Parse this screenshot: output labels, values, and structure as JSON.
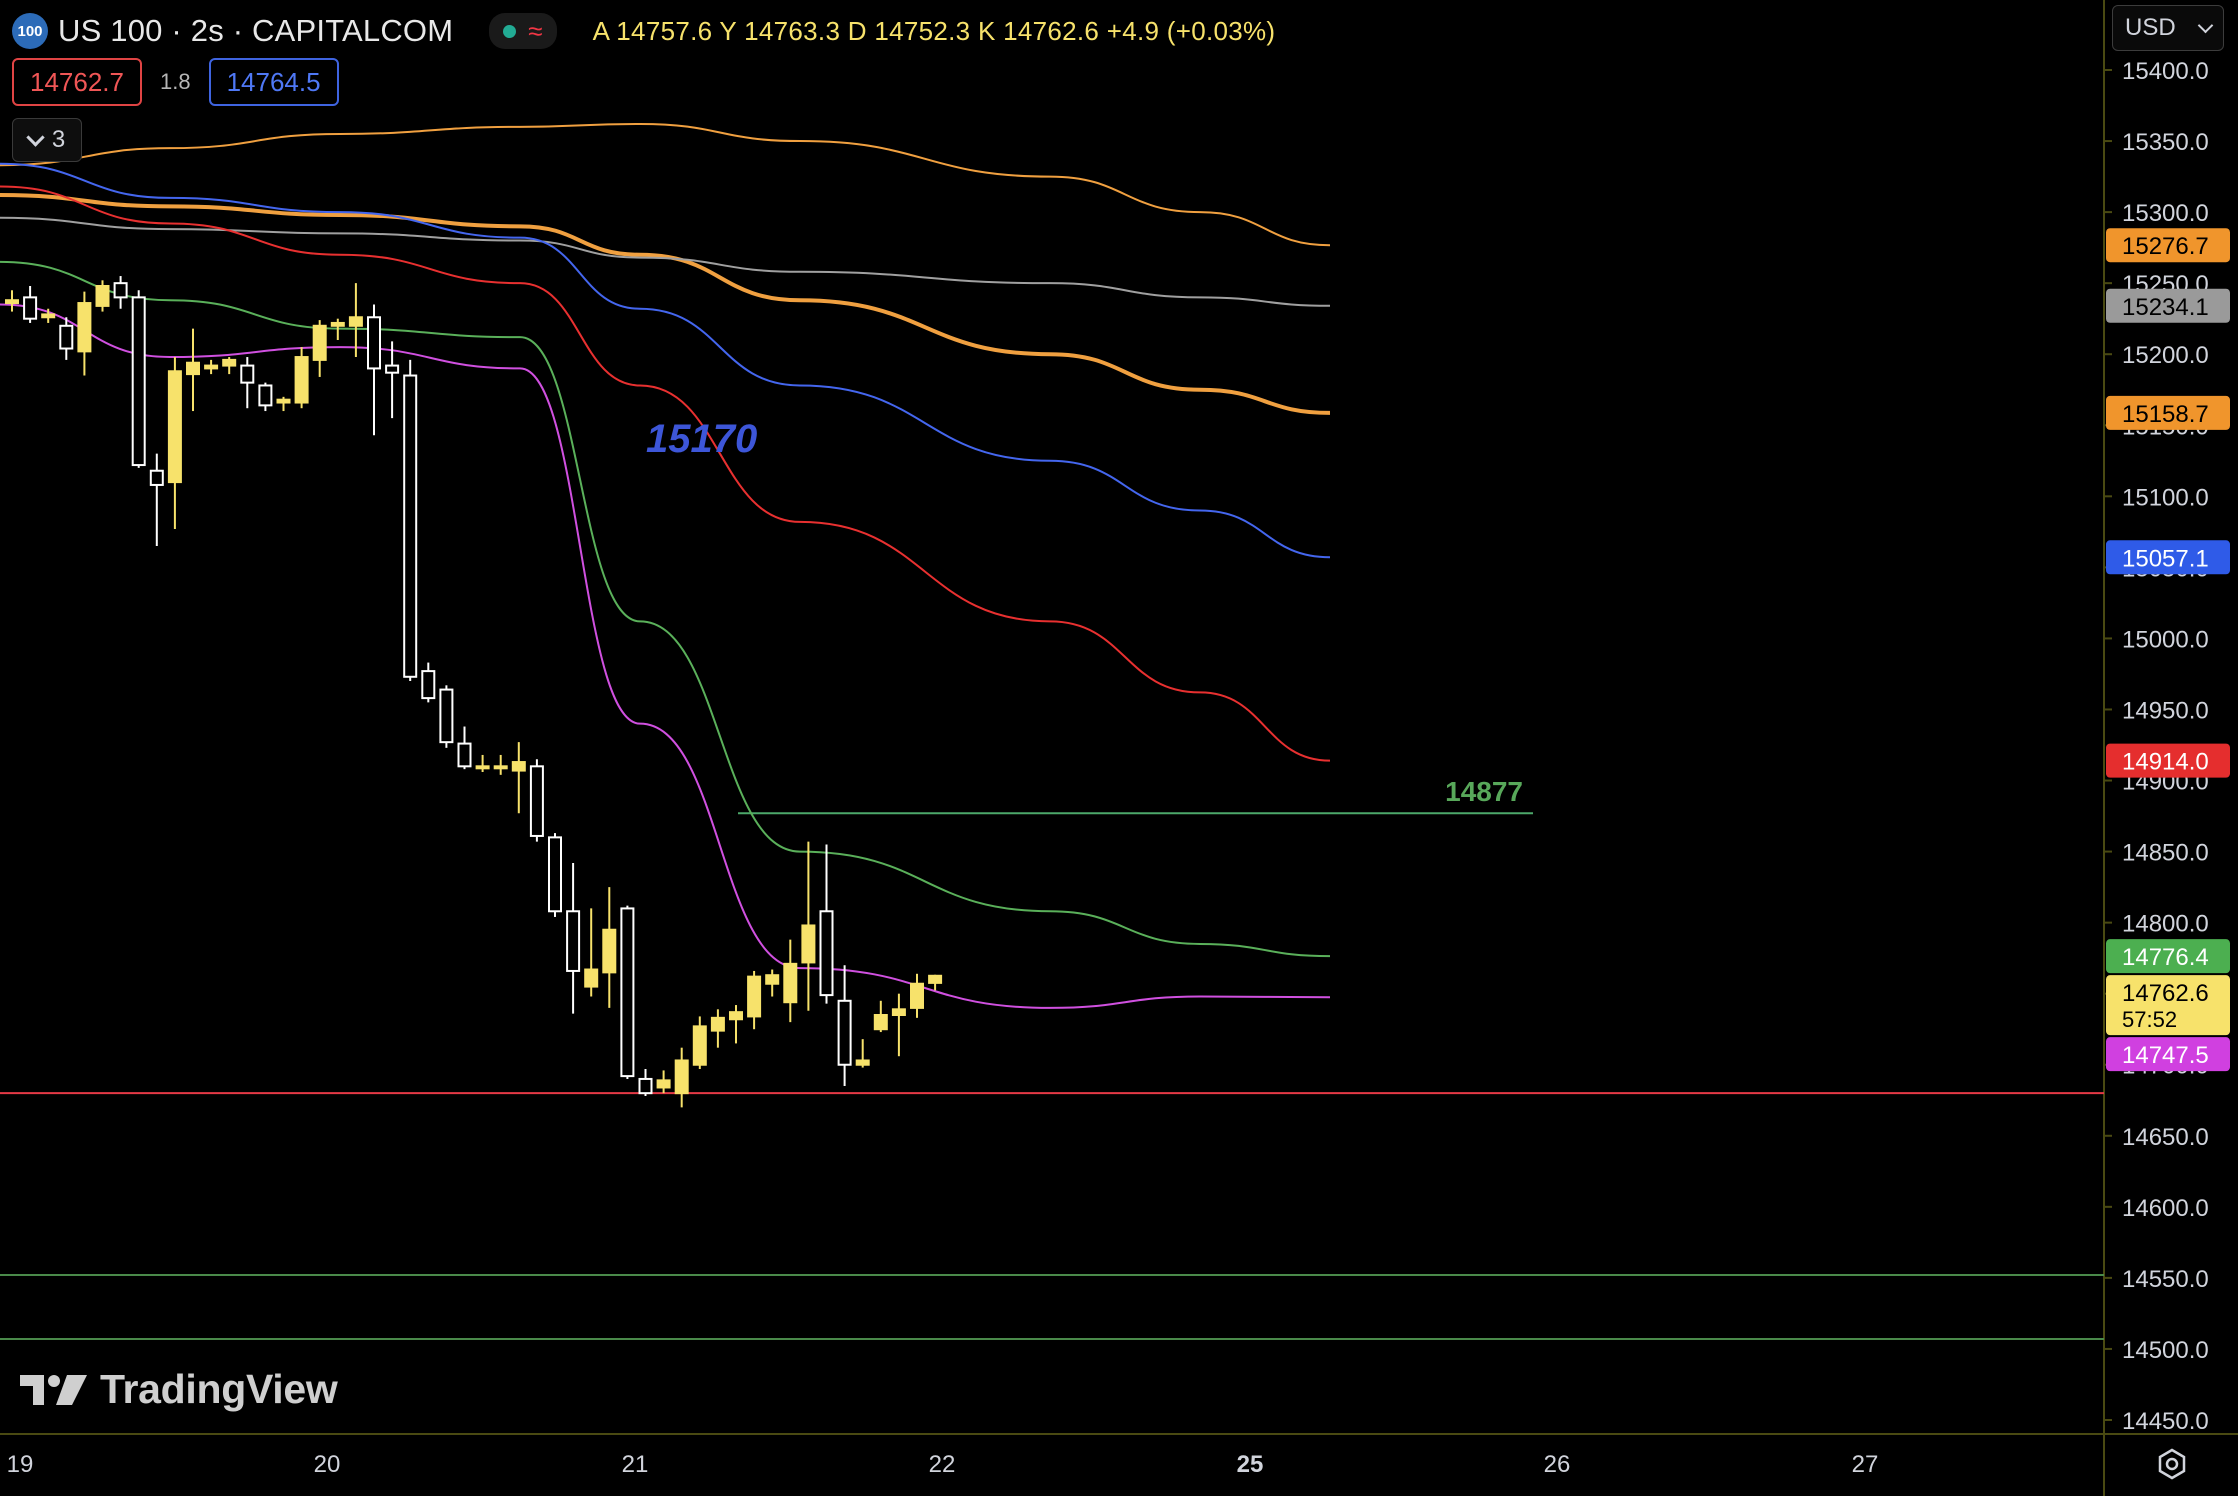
{
  "header": {
    "symbol_badge": "100",
    "symbol_title": "US 100 · 2s · CAPITALCOM",
    "status_wave": "≈",
    "ohlc": "A 14757.6  Y 14763.3  D 14752.3  K 14762.6  +4.9 (+0.03%)"
  },
  "trade": {
    "sell_price": "14762.7",
    "spread": "1.8",
    "buy_price": "14764.5"
  },
  "indicators_toggle": {
    "count": "3"
  },
  "currency_selector": {
    "value": "USD"
  },
  "watermark": {
    "brand": "TradingView"
  },
  "icons": {
    "symbol": "symbol-logo-icon",
    "status": "market-open-dot-icon",
    "wave": "wave-icon",
    "collapse": "chevron-down-icon",
    "currency": "chevron-down-icon",
    "logo": "tradingview-logo-icon",
    "settings": "settings-gear-icon"
  },
  "colors": {
    "background": "#000000",
    "bull_candle": "#f7e26b",
    "bear_candle": "#ffffff",
    "grid_axis": "#3a3a0a"
  },
  "chart_data": {
    "type": "candlestick",
    "x_ticks": [
      "19",
      "20",
      "21",
      "22",
      "25",
      "26",
      "27"
    ],
    "y_ticks": [
      "15400.0",
      "15350.0",
      "15300.0",
      "15250.0",
      "15200.0",
      "15150.0",
      "15100.0",
      "15050.0",
      "15000.0",
      "14950.0",
      "14900.0",
      "14850.0",
      "14800.0",
      "14750.0",
      "14700.0",
      "14650.0",
      "14600.0",
      "14550.0",
      "14500.0",
      "14450.0"
    ],
    "ylim": [
      14440,
      15435
    ],
    "bars": [
      {
        "o": 15236,
        "h": 15245,
        "l": 15230,
        "c": 15238
      },
      {
        "o": 15240,
        "h": 15248,
        "l": 15222,
        "c": 15225
      },
      {
        "o": 15226,
        "h": 15232,
        "l": 15222,
        "c": 15228
      },
      {
        "o": 15220,
        "h": 15226,
        "l": 15196,
        "c": 15204
      },
      {
        "o": 15202,
        "h": 15244,
        "l": 15185,
        "c": 15236
      },
      {
        "o": 15234,
        "h": 15252,
        "l": 15230,
        "c": 15248
      },
      {
        "o": 15250,
        "h": 15255,
        "l": 15232,
        "c": 15240
      },
      {
        "o": 15240,
        "h": 15245,
        "l": 15120,
        "c": 15122
      },
      {
        "o": 15118,
        "h": 15130,
        "l": 15065,
        "c": 15108
      },
      {
        "o": 15110,
        "h": 15198,
        "l": 15077,
        "c": 15188
      },
      {
        "o": 15186,
        "h": 15218,
        "l": 15160,
        "c": 15194
      },
      {
        "o": 15190,
        "h": 15196,
        "l": 15186,
        "c": 15192
      },
      {
        "o": 15192,
        "h": 15198,
        "l": 15186,
        "c": 15196
      },
      {
        "o": 15192,
        "h": 15198,
        "l": 15162,
        "c": 15180
      },
      {
        "o": 15178,
        "h": 15180,
        "l": 15160,
        "c": 15164
      },
      {
        "o": 15166,
        "h": 15170,
        "l": 15160,
        "c": 15168
      },
      {
        "o": 15166,
        "h": 15205,
        "l": 15162,
        "c": 15198
      },
      {
        "o": 15196,
        "h": 15224,
        "l": 15184,
        "c": 15220
      },
      {
        "o": 15220,
        "h": 15225,
        "l": 15210,
        "c": 15222
      },
      {
        "o": 15220,
        "h": 15250,
        "l": 15198,
        "c": 15226
      },
      {
        "o": 15226,
        "h": 15235,
        "l": 15143,
        "c": 15190
      },
      {
        "o": 15192,
        "h": 15209,
        "l": 15155,
        "c": 15187
      },
      {
        "o": 15185,
        "h": 15196,
        "l": 14970,
        "c": 14973
      },
      {
        "o": 14977,
        "h": 14983,
        "l": 14955,
        "c": 14958
      },
      {
        "o": 14964,
        "h": 14967,
        "l": 14923,
        "c": 14927
      },
      {
        "o": 14926,
        "h": 14938,
        "l": 14908,
        "c": 14910
      },
      {
        "o": 14910,
        "h": 14918,
        "l": 14906,
        "c": 14910
      },
      {
        "o": 14910,
        "h": 14918,
        "l": 14904,
        "c": 14910
      },
      {
        "o": 14907,
        "h": 14927,
        "l": 14877,
        "c": 14913
      },
      {
        "o": 14910,
        "h": 14915,
        "l": 14857,
        "c": 14861
      },
      {
        "o": 14860,
        "h": 14863,
        "l": 14804,
        "c": 14808
      },
      {
        "o": 14808,
        "h": 14842,
        "l": 14736,
        "c": 14766
      },
      {
        "o": 14755,
        "h": 14810,
        "l": 14748,
        "c": 14767
      },
      {
        "o": 14765,
        "h": 14825,
        "l": 14740,
        "c": 14795
      },
      {
        "o": 14810,
        "h": 14812,
        "l": 14690,
        "c": 14692
      },
      {
        "o": 14690,
        "h": 14697,
        "l": 14678,
        "c": 14680
      },
      {
        "o": 14684,
        "h": 14696,
        "l": 14680,
        "c": 14689
      },
      {
        "o": 14680,
        "h": 14712,
        "l": 14670,
        "c": 14703
      },
      {
        "o": 14700,
        "h": 14734,
        "l": 14697,
        "c": 14727
      },
      {
        "o": 14724,
        "h": 14739,
        "l": 14712,
        "c": 14733
      },
      {
        "o": 14732,
        "h": 14742,
        "l": 14715,
        "c": 14737
      },
      {
        "o": 14734,
        "h": 14766,
        "l": 14725,
        "c": 14762
      },
      {
        "o": 14757,
        "h": 14767,
        "l": 14748,
        "c": 14763
      },
      {
        "o": 14744,
        "h": 14788,
        "l": 14730,
        "c": 14771
      },
      {
        "o": 14772,
        "h": 14857,
        "l": 14738,
        "c": 14798
      },
      {
        "o": 14808,
        "h": 14855,
        "l": 14743,
        "c": 14749
      },
      {
        "o": 14745,
        "h": 14770,
        "l": 14685,
        "c": 14700
      },
      {
        "o": 14700,
        "h": 14718,
        "l": 14698,
        "c": 14703
      },
      {
        "o": 14725,
        "h": 14745,
        "l": 14723,
        "c": 14735
      },
      {
        "o": 14735,
        "h": 14750,
        "l": 14706,
        "c": 14739
      },
      {
        "o": 14740,
        "h": 14764,
        "l": 14733,
        "c": 14757
      },
      {
        "o": 14757.6,
        "h": 14763.3,
        "l": 14752.3,
        "c": 14762.6
      }
    ],
    "moving_averages": [
      {
        "color": "#f0a040",
        "values": [
          15333,
          15345,
          15355,
          15360,
          15362,
          15350,
          15325,
          15300,
          15276.7
        ]
      },
      {
        "color": "#f0a040",
        "values": [
          15312,
          15304,
          15298,
          15290,
          15270,
          15238,
          15200,
          15175,
          15158.7
        ]
      },
      {
        "color": "#a0a0a0",
        "values": [
          15296,
          15288,
          15285,
          15280,
          15268,
          15258,
          15250,
          15240,
          15234.1
        ]
      },
      {
        "color": "#4466ee",
        "values": [
          15334,
          15310,
          15300,
          15282,
          15232,
          15178,
          15125,
          15090,
          15057.1
        ]
      },
      {
        "color": "#e83030",
        "values": [
          15318,
          15292,
          15270,
          15250,
          15178,
          15082,
          15012,
          14962,
          14914.0
        ]
      },
      {
        "color": "#5ab05a",
        "values": [
          15265,
          15238,
          15218,
          15212,
          15012,
          14850,
          14808,
          14785,
          14776.4
        ]
      },
      {
        "color": "#d050e0",
        "values": [
          15235,
          15198,
          15205,
          15190,
          14940,
          14768,
          14740,
          14748,
          14747.5
        ]
      }
    ],
    "horizontal_lines": [
      {
        "price": 14680,
        "color": "#e63946",
        "label": ""
      },
      {
        "price": 14877,
        "color": "#4ca86a",
        "label": "14877"
      },
      {
        "price": 14552,
        "color": "#4a8a4a",
        "label": ""
      },
      {
        "price": 14507,
        "color": "#4a8a4a",
        "label": ""
      }
    ],
    "annotation": {
      "text": "15170",
      "color": "#3d56d8"
    },
    "price_tags": [
      {
        "text": "15276.7",
        "bg": "#f0952c",
        "fg": "#000000"
      },
      {
        "text": "15234.1",
        "bg": "#9a9a9a",
        "fg": "#000000"
      },
      {
        "text": "15158.7",
        "bg": "#f0952c",
        "fg": "#000000"
      },
      {
        "text": "15057.1",
        "bg": "#2f5be8",
        "fg": "#ffffff"
      },
      {
        "text": "14914.0",
        "bg": "#e52e2e",
        "fg": "#ffffff"
      },
      {
        "text": "14776.4",
        "bg": "#4caf50",
        "fg": "#ffffff"
      },
      {
        "text": "14762.6",
        "bg": "#f7e26b",
        "fg": "#000000",
        "sub": "57:52"
      },
      {
        "text": "14747.5",
        "bg": "#d040e0",
        "fg": "#ffffff"
      }
    ]
  }
}
